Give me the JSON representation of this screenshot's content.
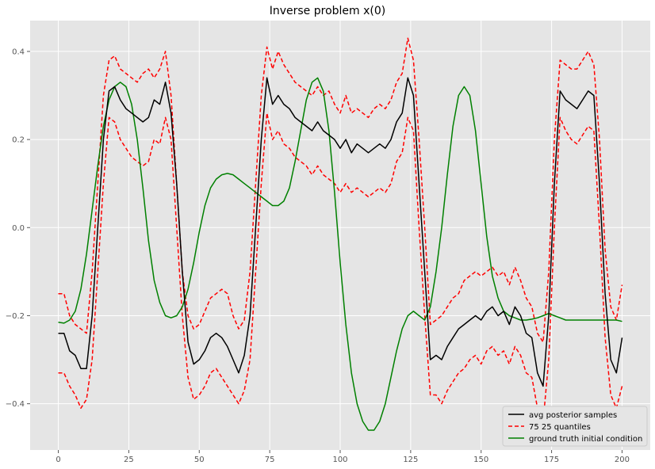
{
  "chart_data": {
    "type": "line",
    "title": "Inverse problem x(0)",
    "xlabel": "",
    "ylabel": "",
    "xlim": [
      -10,
      210
    ],
    "ylim": [
      -0.505,
      0.47
    ],
    "xticks": [
      0,
      25,
      50,
      75,
      100,
      125,
      150,
      175,
      200
    ],
    "yticks": [
      -0.4,
      -0.2,
      0.0,
      0.2,
      0.4
    ],
    "xtick_labels": [
      "0",
      "25",
      "50",
      "75",
      "100",
      "125",
      "150",
      "175",
      "200"
    ],
    "ytick_labels": [
      "−0.4",
      "−0.2",
      "0.0",
      "0.2",
      "0.4"
    ],
    "grid": true,
    "legend_position": "lower-right",
    "x": [
      0,
      2,
      4,
      6,
      8,
      10,
      12,
      14,
      16,
      18,
      20,
      22,
      24,
      26,
      28,
      30,
      32,
      34,
      36,
      38,
      40,
      42,
      44,
      46,
      48,
      50,
      52,
      54,
      56,
      58,
      60,
      62,
      64,
      66,
      68,
      70,
      72,
      74,
      76,
      78,
      80,
      82,
      84,
      86,
      88,
      90,
      92,
      94,
      96,
      98,
      100,
      102,
      104,
      106,
      108,
      110,
      112,
      114,
      116,
      118,
      120,
      122,
      124,
      126,
      128,
      130,
      132,
      134,
      136,
      138,
      140,
      142,
      144,
      146,
      148,
      150,
      152,
      154,
      156,
      158,
      160,
      162,
      164,
      166,
      168,
      170,
      172,
      174,
      176,
      178,
      180,
      182,
      184,
      186,
      188,
      190,
      192,
      194,
      196,
      198,
      200
    ],
    "series": [
      {
        "name": "avg posterior samples",
        "color": "#000000",
        "dash": "solid",
        "values": [
          -0.24,
          -0.24,
          -0.28,
          -0.29,
          -0.32,
          -0.32,
          -0.2,
          0.0,
          0.2,
          0.31,
          0.32,
          0.29,
          0.27,
          0.26,
          0.25,
          0.24,
          0.25,
          0.29,
          0.28,
          0.33,
          0.26,
          0.1,
          -0.1,
          -0.26,
          -0.31,
          -0.3,
          -0.28,
          -0.25,
          -0.24,
          -0.25,
          -0.27,
          -0.3,
          -0.33,
          -0.29,
          -0.2,
          0.0,
          0.2,
          0.34,
          0.28,
          0.3,
          0.28,
          0.27,
          0.25,
          0.24,
          0.23,
          0.22,
          0.24,
          0.22,
          0.21,
          0.2,
          0.18,
          0.2,
          0.17,
          0.19,
          0.18,
          0.17,
          0.18,
          0.19,
          0.18,
          0.2,
          0.24,
          0.26,
          0.34,
          0.3,
          0.1,
          -0.1,
          -0.3,
          -0.29,
          -0.3,
          -0.27,
          -0.25,
          -0.23,
          -0.22,
          -0.21,
          -0.2,
          -0.21,
          -0.19,
          -0.18,
          -0.2,
          -0.19,
          -0.22,
          -0.18,
          -0.2,
          -0.24,
          -0.25,
          -0.33,
          -0.36,
          -0.2,
          0.1,
          0.31,
          0.29,
          0.28,
          0.27,
          0.29,
          0.31,
          0.3,
          0.1,
          -0.15,
          -0.3,
          -0.33,
          -0.25
        ]
      },
      {
        "name": "75 25 quantiles",
        "color": "#ff0000",
        "dash": "dashed",
        "values": [
          -0.15,
          -0.15,
          -0.2,
          -0.22,
          -0.23,
          -0.24,
          -0.1,
          0.1,
          0.3,
          0.38,
          0.39,
          0.36,
          0.35,
          0.34,
          0.33,
          0.35,
          0.36,
          0.34,
          0.36,
          0.4,
          0.3,
          0.1,
          -0.1,
          -0.2,
          -0.23,
          -0.22,
          -0.19,
          -0.16,
          -0.15,
          -0.14,
          -0.15,
          -0.2,
          -0.23,
          -0.21,
          -0.1,
          0.1,
          0.3,
          0.41,
          0.36,
          0.4,
          0.37,
          0.35,
          0.33,
          0.32,
          0.31,
          0.3,
          0.32,
          0.3,
          0.31,
          0.28,
          0.26,
          0.3,
          0.26,
          0.27,
          0.26,
          0.25,
          0.27,
          0.28,
          0.27,
          0.29,
          0.33,
          0.35,
          0.43,
          0.38,
          0.2,
          0.0,
          -0.22,
          -0.21,
          -0.2,
          -0.18,
          -0.16,
          -0.15,
          -0.12,
          -0.11,
          -0.1,
          -0.11,
          -0.1,
          -0.09,
          -0.11,
          -0.1,
          -0.13,
          -0.09,
          -0.12,
          -0.16,
          -0.18,
          -0.24,
          -0.26,
          -0.1,
          0.2,
          0.38,
          0.37,
          0.36,
          0.36,
          0.38,
          0.4,
          0.37,
          0.2,
          -0.05,
          -0.18,
          -0.21,
          -0.13
        ]
      },
      {
        "name": "75 25 quantiles (lower)",
        "color": "#ff0000",
        "dash": "dashed",
        "values": [
          -0.33,
          -0.33,
          -0.36,
          -0.38,
          -0.41,
          -0.39,
          -0.3,
          -0.1,
          0.1,
          0.25,
          0.24,
          0.2,
          0.18,
          0.16,
          0.15,
          0.14,
          0.15,
          0.2,
          0.19,
          0.25,
          0.2,
          0.0,
          -0.2,
          -0.34,
          -0.39,
          -0.38,
          -0.36,
          -0.33,
          -0.32,
          -0.34,
          -0.36,
          -0.38,
          -0.4,
          -0.37,
          -0.3,
          -0.1,
          0.1,
          0.26,
          0.2,
          0.22,
          0.19,
          0.18,
          0.16,
          0.15,
          0.14,
          0.12,
          0.14,
          0.12,
          0.11,
          0.1,
          0.08,
          0.1,
          0.08,
          0.09,
          0.08,
          0.07,
          0.08,
          0.09,
          0.08,
          0.1,
          0.15,
          0.17,
          0.25,
          0.22,
          0.0,
          -0.2,
          -0.38,
          -0.38,
          -0.4,
          -0.37,
          -0.35,
          -0.33,
          -0.32,
          -0.3,
          -0.29,
          -0.31,
          -0.28,
          -0.27,
          -0.29,
          -0.28,
          -0.31,
          -0.27,
          -0.29,
          -0.33,
          -0.34,
          -0.41,
          -0.44,
          -0.3,
          0.0,
          0.25,
          0.22,
          0.2,
          0.19,
          0.21,
          0.23,
          0.22,
          0.0,
          -0.25,
          -0.38,
          -0.41,
          -0.36
        ]
      },
      {
        "name": "ground truth initial condition",
        "color": "#008000",
        "dash": "solid",
        "values": [
          -0.215,
          -0.217,
          -0.21,
          -0.19,
          -0.14,
          -0.06,
          0.04,
          0.14,
          0.23,
          0.29,
          0.32,
          0.33,
          0.32,
          0.28,
          0.2,
          0.09,
          -0.03,
          -0.12,
          -0.17,
          -0.2,
          -0.205,
          -0.2,
          -0.18,
          -0.14,
          -0.08,
          -0.01,
          0.05,
          0.09,
          0.11,
          0.12,
          0.123,
          0.12,
          0.11,
          0.1,
          0.09,
          0.08,
          0.07,
          0.06,
          0.05,
          0.05,
          0.06,
          0.09,
          0.15,
          0.22,
          0.29,
          0.33,
          0.34,
          0.31,
          0.22,
          0.08,
          -0.08,
          -0.22,
          -0.33,
          -0.4,
          -0.44,
          -0.46,
          -0.46,
          -0.44,
          -0.4,
          -0.34,
          -0.28,
          -0.23,
          -0.2,
          -0.19,
          -0.2,
          -0.21,
          -0.18,
          -0.1,
          0.0,
          0.12,
          0.23,
          0.3,
          0.32,
          0.3,
          0.22,
          0.1,
          -0.02,
          -0.11,
          -0.16,
          -0.19,
          -0.2,
          -0.205,
          -0.21,
          -0.21,
          -0.208,
          -0.205,
          -0.2,
          -0.195,
          -0.2,
          -0.205,
          -0.21,
          -0.21,
          -0.21,
          -0.21,
          -0.21,
          -0.21,
          -0.21,
          -0.21,
          -0.21,
          -0.21,
          -0.213
        ]
      }
    ],
    "legend": [
      {
        "label": "avg posterior samples",
        "color": "#000000",
        "dash": "solid"
      },
      {
        "label": "75 25 quantiles",
        "color": "#ff0000",
        "dash": "dashed"
      },
      {
        "label": "ground truth initial condition",
        "color": "#008000",
        "dash": "solid"
      }
    ]
  }
}
